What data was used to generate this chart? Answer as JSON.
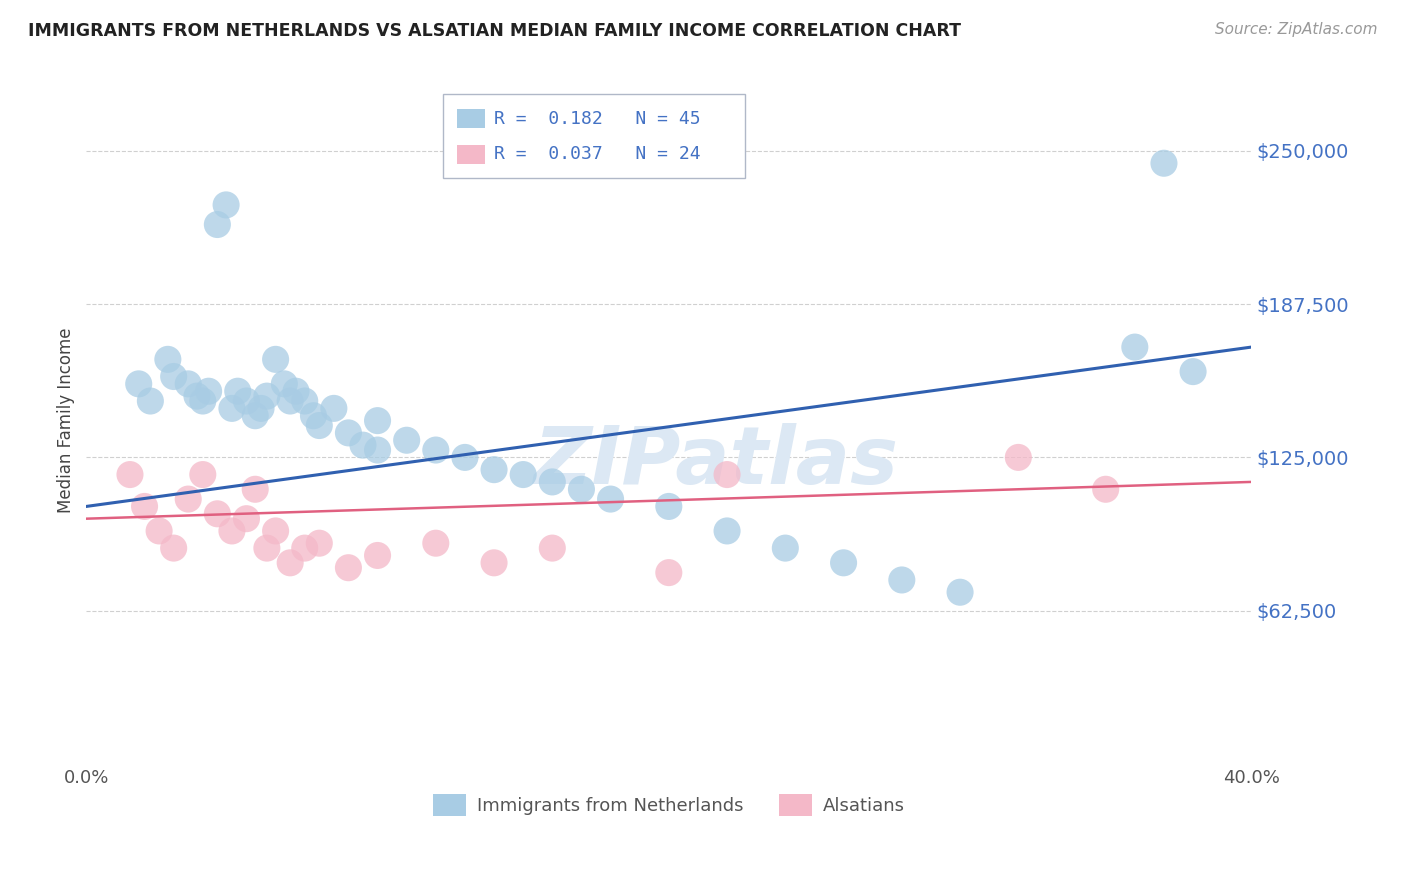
{
  "title": "IMMIGRANTS FROM NETHERLANDS VS ALSATIAN MEDIAN FAMILY INCOME CORRELATION CHART",
  "source": "Source: ZipAtlas.com",
  "ylabel": "Median Family Income",
  "xmin": 0.0,
  "xmax": 0.4,
  "ymin": 0,
  "ymax": 280000,
  "yticks": [
    62500,
    125000,
    187500,
    250000
  ],
  "ytick_labels": [
    "$62,500",
    "$125,000",
    "$187,500",
    "$250,000"
  ],
  "xticks": [
    0.0,
    0.1,
    0.2,
    0.3,
    0.4
  ],
  "xtick_labels": [
    "0.0%",
    "",
    "",
    "",
    "40.0%"
  ],
  "blue_color": "#a8cce4",
  "pink_color": "#f4b8c8",
  "line_blue": "#3060b0",
  "line_pink": "#e06080",
  "blue_scatter_x": [
    0.018,
    0.022,
    0.028,
    0.03,
    0.035,
    0.038,
    0.04,
    0.042,
    0.045,
    0.048,
    0.05,
    0.052,
    0.055,
    0.058,
    0.06,
    0.062,
    0.065,
    0.068,
    0.07,
    0.072,
    0.075,
    0.078,
    0.08,
    0.085,
    0.09,
    0.095,
    0.1,
    0.1,
    0.11,
    0.12,
    0.13,
    0.14,
    0.15,
    0.16,
    0.17,
    0.18,
    0.2,
    0.22,
    0.24,
    0.26,
    0.28,
    0.3,
    0.36,
    0.37,
    0.38
  ],
  "blue_scatter_y": [
    155000,
    148000,
    165000,
    158000,
    155000,
    150000,
    148000,
    152000,
    220000,
    228000,
    145000,
    152000,
    148000,
    142000,
    145000,
    150000,
    165000,
    155000,
    148000,
    152000,
    148000,
    142000,
    138000,
    145000,
    135000,
    130000,
    128000,
    140000,
    132000,
    128000,
    125000,
    120000,
    118000,
    115000,
    112000,
    108000,
    105000,
    95000,
    88000,
    82000,
    75000,
    70000,
    170000,
    245000,
    160000
  ],
  "pink_scatter_x": [
    0.015,
    0.02,
    0.025,
    0.03,
    0.035,
    0.04,
    0.045,
    0.05,
    0.055,
    0.058,
    0.062,
    0.065,
    0.07,
    0.075,
    0.08,
    0.09,
    0.1,
    0.12,
    0.14,
    0.16,
    0.2,
    0.22,
    0.32,
    0.35
  ],
  "pink_scatter_y": [
    118000,
    105000,
    95000,
    88000,
    108000,
    118000,
    102000,
    95000,
    100000,
    112000,
    88000,
    95000,
    82000,
    88000,
    90000,
    80000,
    85000,
    90000,
    82000,
    88000,
    78000,
    118000,
    125000,
    112000
  ],
  "blue_line_x": [
    0.0,
    0.4
  ],
  "blue_line_y": [
    105000,
    170000
  ],
  "pink_line_x": [
    0.0,
    0.4
  ],
  "pink_line_y": [
    100000,
    115000
  ],
  "watermark": "ZIPatlas",
  "background_color": "#ffffff",
  "grid_color": "#d0d0d0"
}
